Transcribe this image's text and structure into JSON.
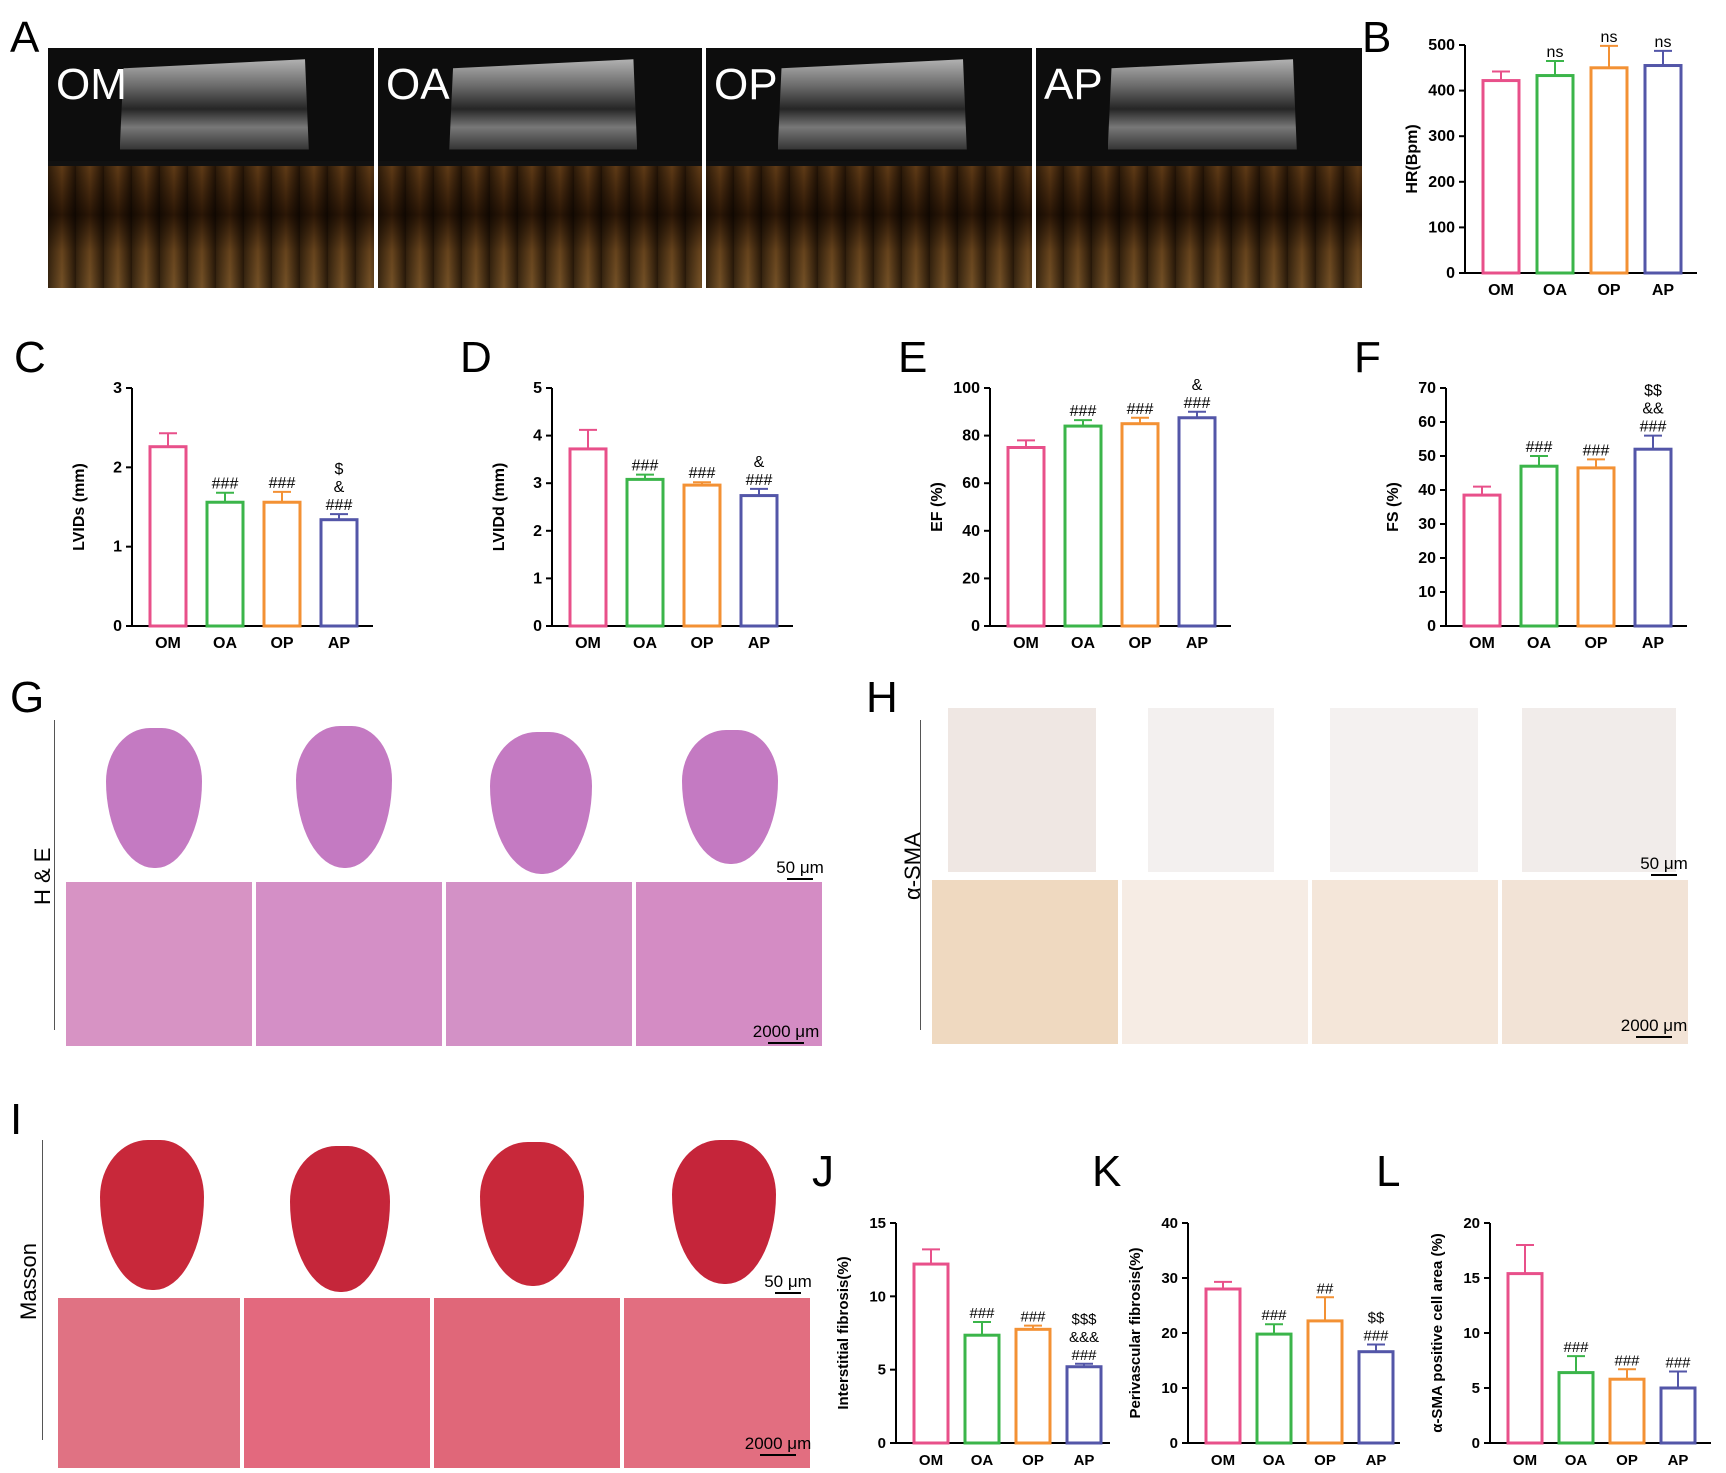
{
  "panels": {
    "A": "A",
    "B": "B",
    "C": "C",
    "D": "D",
    "E": "E",
    "F": "F",
    "G": "G",
    "H": "H",
    "I": "I",
    "J": "J",
    "K": "K",
    "L": "L"
  },
  "echo_groups": [
    "OM",
    "OA",
    "OP",
    "AP"
  ],
  "histology": {
    "he_label": "H & E",
    "sma_label": "α-SMA",
    "masson_label": "Masson",
    "scale_small": "50 μm",
    "scale_large": "2000 μm"
  },
  "colors": {
    "OM": "#e8508a",
    "OA": "#3bb54a",
    "OP": "#f39134",
    "AP": "#5356a8"
  },
  "chart_data": [
    {
      "id": "B",
      "type": "bar",
      "categories": [
        "OM",
        "OA",
        "OP",
        "AP"
      ],
      "ylabel": "HR(Bpm)",
      "ylim": [
        0,
        500
      ],
      "ticks": [
        0,
        100,
        200,
        300,
        400,
        500
      ],
      "values": [
        422,
        433,
        450,
        455
      ],
      "errors": [
        20,
        32,
        48,
        32
      ],
      "annotations": [
        [],
        [
          "ns"
        ],
        [
          "ns"
        ],
        [
          "ns"
        ]
      ]
    },
    {
      "id": "C",
      "type": "bar",
      "categories": [
        "OM",
        "OA",
        "OP",
        "AP"
      ],
      "ylabel": "LVIDs (mm)",
      "ylim": [
        0,
        3
      ],
      "ticks": [
        0,
        1,
        2,
        3
      ],
      "values": [
        2.26,
        1.56,
        1.56,
        1.34
      ],
      "errors": [
        0.17,
        0.12,
        0.13,
        0.07
      ],
      "annotations": [
        [],
        [
          "###"
        ],
        [
          "###"
        ],
        [
          "$",
          "&",
          "###"
        ]
      ]
    },
    {
      "id": "D",
      "type": "bar",
      "categories": [
        "OM",
        "OA",
        "OP",
        "AP"
      ],
      "ylabel": "LVIDd (mm)",
      "ylim": [
        0,
        5
      ],
      "ticks": [
        0,
        1,
        2,
        3,
        4,
        5
      ],
      "values": [
        3.72,
        3.08,
        2.96,
        2.74
      ],
      "errors": [
        0.4,
        0.1,
        0.06,
        0.14
      ],
      "annotations": [
        [],
        [
          "###"
        ],
        [
          "###"
        ],
        [
          "&",
          "###"
        ]
      ]
    },
    {
      "id": "E",
      "type": "bar",
      "categories": [
        "OM",
        "OA",
        "OP",
        "AP"
      ],
      "ylabel": "EF (%)",
      "ylim": [
        0,
        100
      ],
      "ticks": [
        0,
        20,
        40,
        60,
        80,
        100
      ],
      "values": [
        75,
        84,
        85,
        87.5
      ],
      "errors": [
        3,
        2.5,
        2.5,
        2.5
      ],
      "annotations": [
        [],
        [
          "###"
        ],
        [
          "###"
        ],
        [
          "&",
          "###"
        ]
      ]
    },
    {
      "id": "F",
      "type": "bar",
      "categories": [
        "OM",
        "OA",
        "OP",
        "AP"
      ],
      "ylabel": "FS (%)",
      "ylim": [
        0,
        70
      ],
      "ticks": [
        0,
        10,
        20,
        30,
        40,
        50,
        60,
        70
      ],
      "values": [
        38.5,
        47,
        46.5,
        52
      ],
      "errors": [
        2.5,
        3,
        2.5,
        4
      ],
      "annotations": [
        [],
        [
          "###"
        ],
        [
          "###"
        ],
        [
          "$$",
          "&&",
          "###"
        ]
      ]
    },
    {
      "id": "J",
      "type": "bar",
      "categories": [
        "OM",
        "OA",
        "OP",
        "AP"
      ],
      "ylabel": "Interstitial fibrosis(%)",
      "ylim": [
        0,
        15
      ],
      "ticks": [
        0,
        5,
        10,
        15
      ],
      "values": [
        12.2,
        7.35,
        7.75,
        5.2
      ],
      "errors": [
        1.0,
        0.9,
        0.25,
        0.2
      ],
      "annotations": [
        [],
        [
          "###"
        ],
        [
          "###"
        ],
        [
          "$$$",
          "&&&",
          "###"
        ]
      ]
    },
    {
      "id": "K",
      "type": "bar",
      "categories": [
        "OM",
        "OA",
        "OP",
        "AP"
      ],
      "ylabel": "Perivascular fibrosis(%)",
      "ylim": [
        0,
        40
      ],
      "ticks": [
        0,
        10,
        20,
        30,
        40
      ],
      "values": [
        28,
        19.8,
        22.2,
        16.6
      ],
      "errors": [
        1.3,
        1.8,
        4.3,
        1.3
      ],
      "annotations": [
        [],
        [
          "###"
        ],
        [
          "##"
        ],
        [
          "$$",
          "###"
        ]
      ]
    },
    {
      "id": "L",
      "type": "bar",
      "categories": [
        "OM",
        "OA",
        "OP",
        "AP"
      ],
      "ylabel": "α-SMA positive cell area (%)",
      "ylim": [
        0,
        20
      ],
      "ticks": [
        0,
        5,
        10,
        15,
        20
      ],
      "values": [
        15.4,
        6.4,
        5.8,
        5.0
      ],
      "errors": [
        2.6,
        1.5,
        0.9,
        1.5
      ],
      "annotations": [
        [],
        [
          "###"
        ],
        [
          "###"
        ],
        [
          "###"
        ]
      ]
    }
  ]
}
